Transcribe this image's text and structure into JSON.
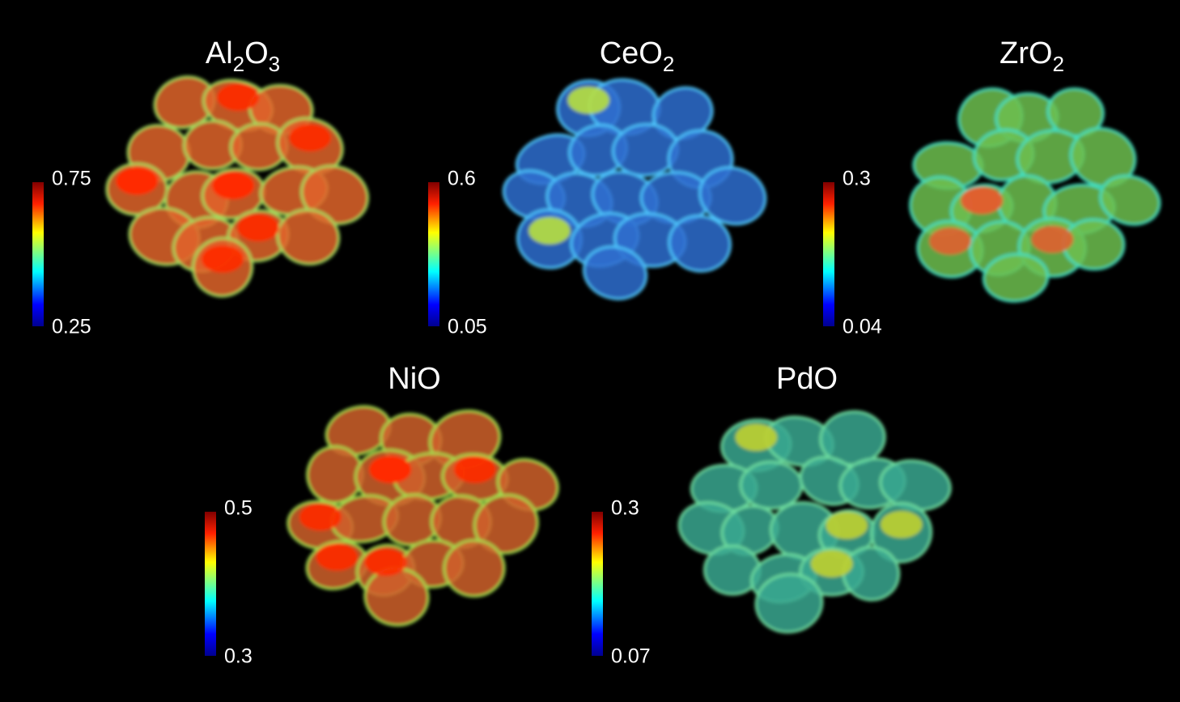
{
  "panels": [
    {
      "title": [
        {
          "text": "Al"
        },
        {
          "text": "2",
          "sub": true
        },
        {
          "text": "O"
        },
        {
          "text": "3",
          "sub": true
        }
      ],
      "colorbar": {
        "max": "0.75",
        "min": "0.25"
      }
    },
    {
      "title": [
        {
          "text": "CeO"
        },
        {
          "text": "2",
          "sub": true
        }
      ],
      "colorbar": {
        "max": "0.6",
        "min": "0.05"
      }
    },
    {
      "title": [
        {
          "text": "ZrO"
        },
        {
          "text": "2",
          "sub": true
        }
      ],
      "colorbar": {
        "max": "0.3",
        "min": "0.04"
      }
    },
    {
      "title": [
        {
          "text": "NiO"
        }
      ],
      "colorbar": {
        "max": "0.5",
        "min": "0.3"
      }
    },
    {
      "title": [
        {
          "text": "PdO"
        }
      ],
      "colorbar": {
        "max": "0.3",
        "min": "0.07"
      }
    }
  ]
}
